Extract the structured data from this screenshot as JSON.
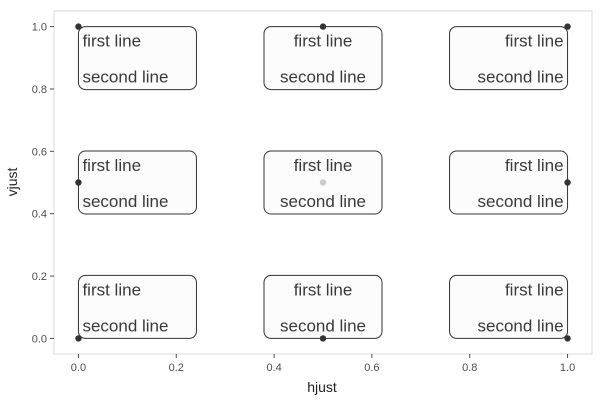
{
  "chart_data": {
    "type": "scatter",
    "xlabel": "hjust",
    "ylabel": "vjust",
    "xlim": [
      -0.05,
      1.05
    ],
    "ylim": [
      -0.05,
      1.05
    ],
    "x_ticks": [
      0.0,
      0.2,
      0.4,
      0.6,
      0.8,
      1.0
    ],
    "y_ticks": [
      0.0,
      0.2,
      0.4,
      0.6,
      0.8,
      1.0
    ],
    "x_tick_labels": [
      "0.0",
      "0.2",
      "0.4",
      "0.6",
      "0.8",
      "1.0"
    ],
    "y_tick_labels": [
      "0.0",
      "0.2",
      "0.4",
      "0.6",
      "0.8",
      "1.0"
    ],
    "grid": false,
    "points": [
      {
        "x": 0.0,
        "y": 1.0,
        "hjust": 0.0,
        "vjust": 1.0,
        "label": "first line\nsecond line"
      },
      {
        "x": 0.5,
        "y": 1.0,
        "hjust": 0.5,
        "vjust": 1.0,
        "label": "first line\nsecond line"
      },
      {
        "x": 1.0,
        "y": 1.0,
        "hjust": 1.0,
        "vjust": 1.0,
        "label": "first line\nsecond line"
      },
      {
        "x": 0.0,
        "y": 0.5,
        "hjust": 0.0,
        "vjust": 0.5,
        "label": "first line\nsecond line"
      },
      {
        "x": 0.5,
        "y": 0.5,
        "hjust": 0.5,
        "vjust": 0.5,
        "label": "first line\nsecond line"
      },
      {
        "x": 1.0,
        "y": 0.5,
        "hjust": 1.0,
        "vjust": 0.5,
        "label": "first line\nsecond line"
      },
      {
        "x": 0.0,
        "y": 0.0,
        "hjust": 0.0,
        "vjust": 0.0,
        "label": "first line\nsecond line"
      },
      {
        "x": 0.5,
        "y": 0.0,
        "hjust": 0.5,
        "vjust": 0.0,
        "label": "first line\nsecond line"
      },
      {
        "x": 1.0,
        "y": 0.0,
        "hjust": 1.0,
        "vjust": 0.0,
        "label": "first line\nsecond line"
      }
    ],
    "colors": {
      "point": "#333333",
      "point_hidden": "#cccccc",
      "box_fill": "#fcfcfc",
      "box_stroke": "#333333",
      "text": "#3a3a3a",
      "panel_border": "#d9d9d9",
      "tick": "#4d4d4d"
    }
  }
}
